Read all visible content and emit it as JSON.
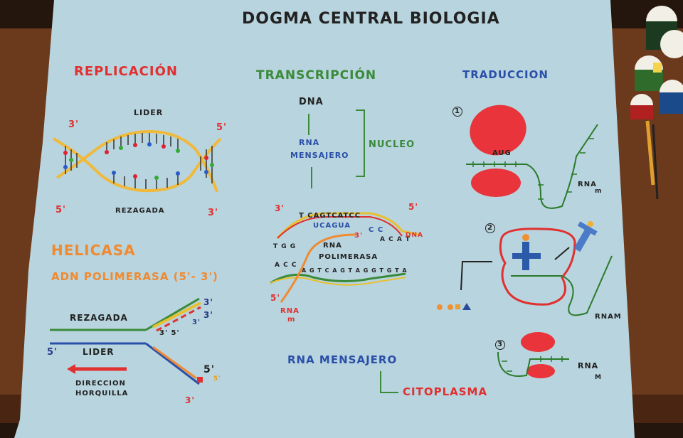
{
  "poster": {
    "title": "DOGMA CENTRAL BIOLOGIA",
    "colors": {
      "paper": "#b8d4de",
      "table": "#6b3a1c",
      "background": "#24150d"
    }
  },
  "replicacion": {
    "heading": "REPLICACIÓN",
    "lider": "LIDER",
    "rezagada": "REZAGADA",
    "end_3_top": "3'",
    "end_5_top": "5'",
    "end_5_bottom": "5'",
    "end_3_bottom": "3'"
  },
  "enzimas": {
    "helicasa": "HELICASA",
    "adn_polimerasa": "ADN POLIMERASA (5'- 3')"
  },
  "horquilla": {
    "rezagada": "REZAGADA",
    "lider": "LIDER",
    "direccion": "DIRECCION",
    "horquilla": "HORQUILLA",
    "label_3_top": "3'",
    "label_3_5": "3' 5'",
    "label_5_left": "5'",
    "label_5_right": "5'",
    "label_3_bottom": "3'",
    "label_3_mid": "3'",
    "label_5_mid": "5'",
    "label_3_inner": "3'"
  },
  "transcripcion": {
    "heading": "TRANSCRIPCIÓN",
    "dna": "DNA",
    "rna": "RNA",
    "mensajero": "MENSAJERO",
    "nucleo": "NUCLEO",
    "end_3": "3'",
    "end_5": "5'",
    "top_strand": "T CAGTCATCC",
    "rna_strand": "UCAGUA",
    "rna_3": "3'",
    "rna_end": "C C",
    "tgg": "T G G",
    "acat": "A C A T",
    "dna_label": "DNA",
    "rna_pol_1": "RNA",
    "rna_pol_2": "POLIMERASA",
    "bottom_left": "A C C",
    "bottom_strand": "A G T C A G T A G G T G T A",
    "end_5_bottom": "5'",
    "rna_m": "RNA",
    "rna_m_sub": "m"
  },
  "citoplasma": {
    "rna_mensajero": "RNA MENSAJERO",
    "citoplasma": "CITOPLASMA"
  },
  "traduccion": {
    "heading": "TRADUCCION",
    "step1": "1",
    "aug": "AUG",
    "rna_m_1": "RNA",
    "rna_m_1_sub": "m",
    "step2": "2",
    "rnam_2": "RNAM",
    "step3": "3",
    "rna_m_3": "RNA",
    "rna_m_3_sub": "M"
  }
}
